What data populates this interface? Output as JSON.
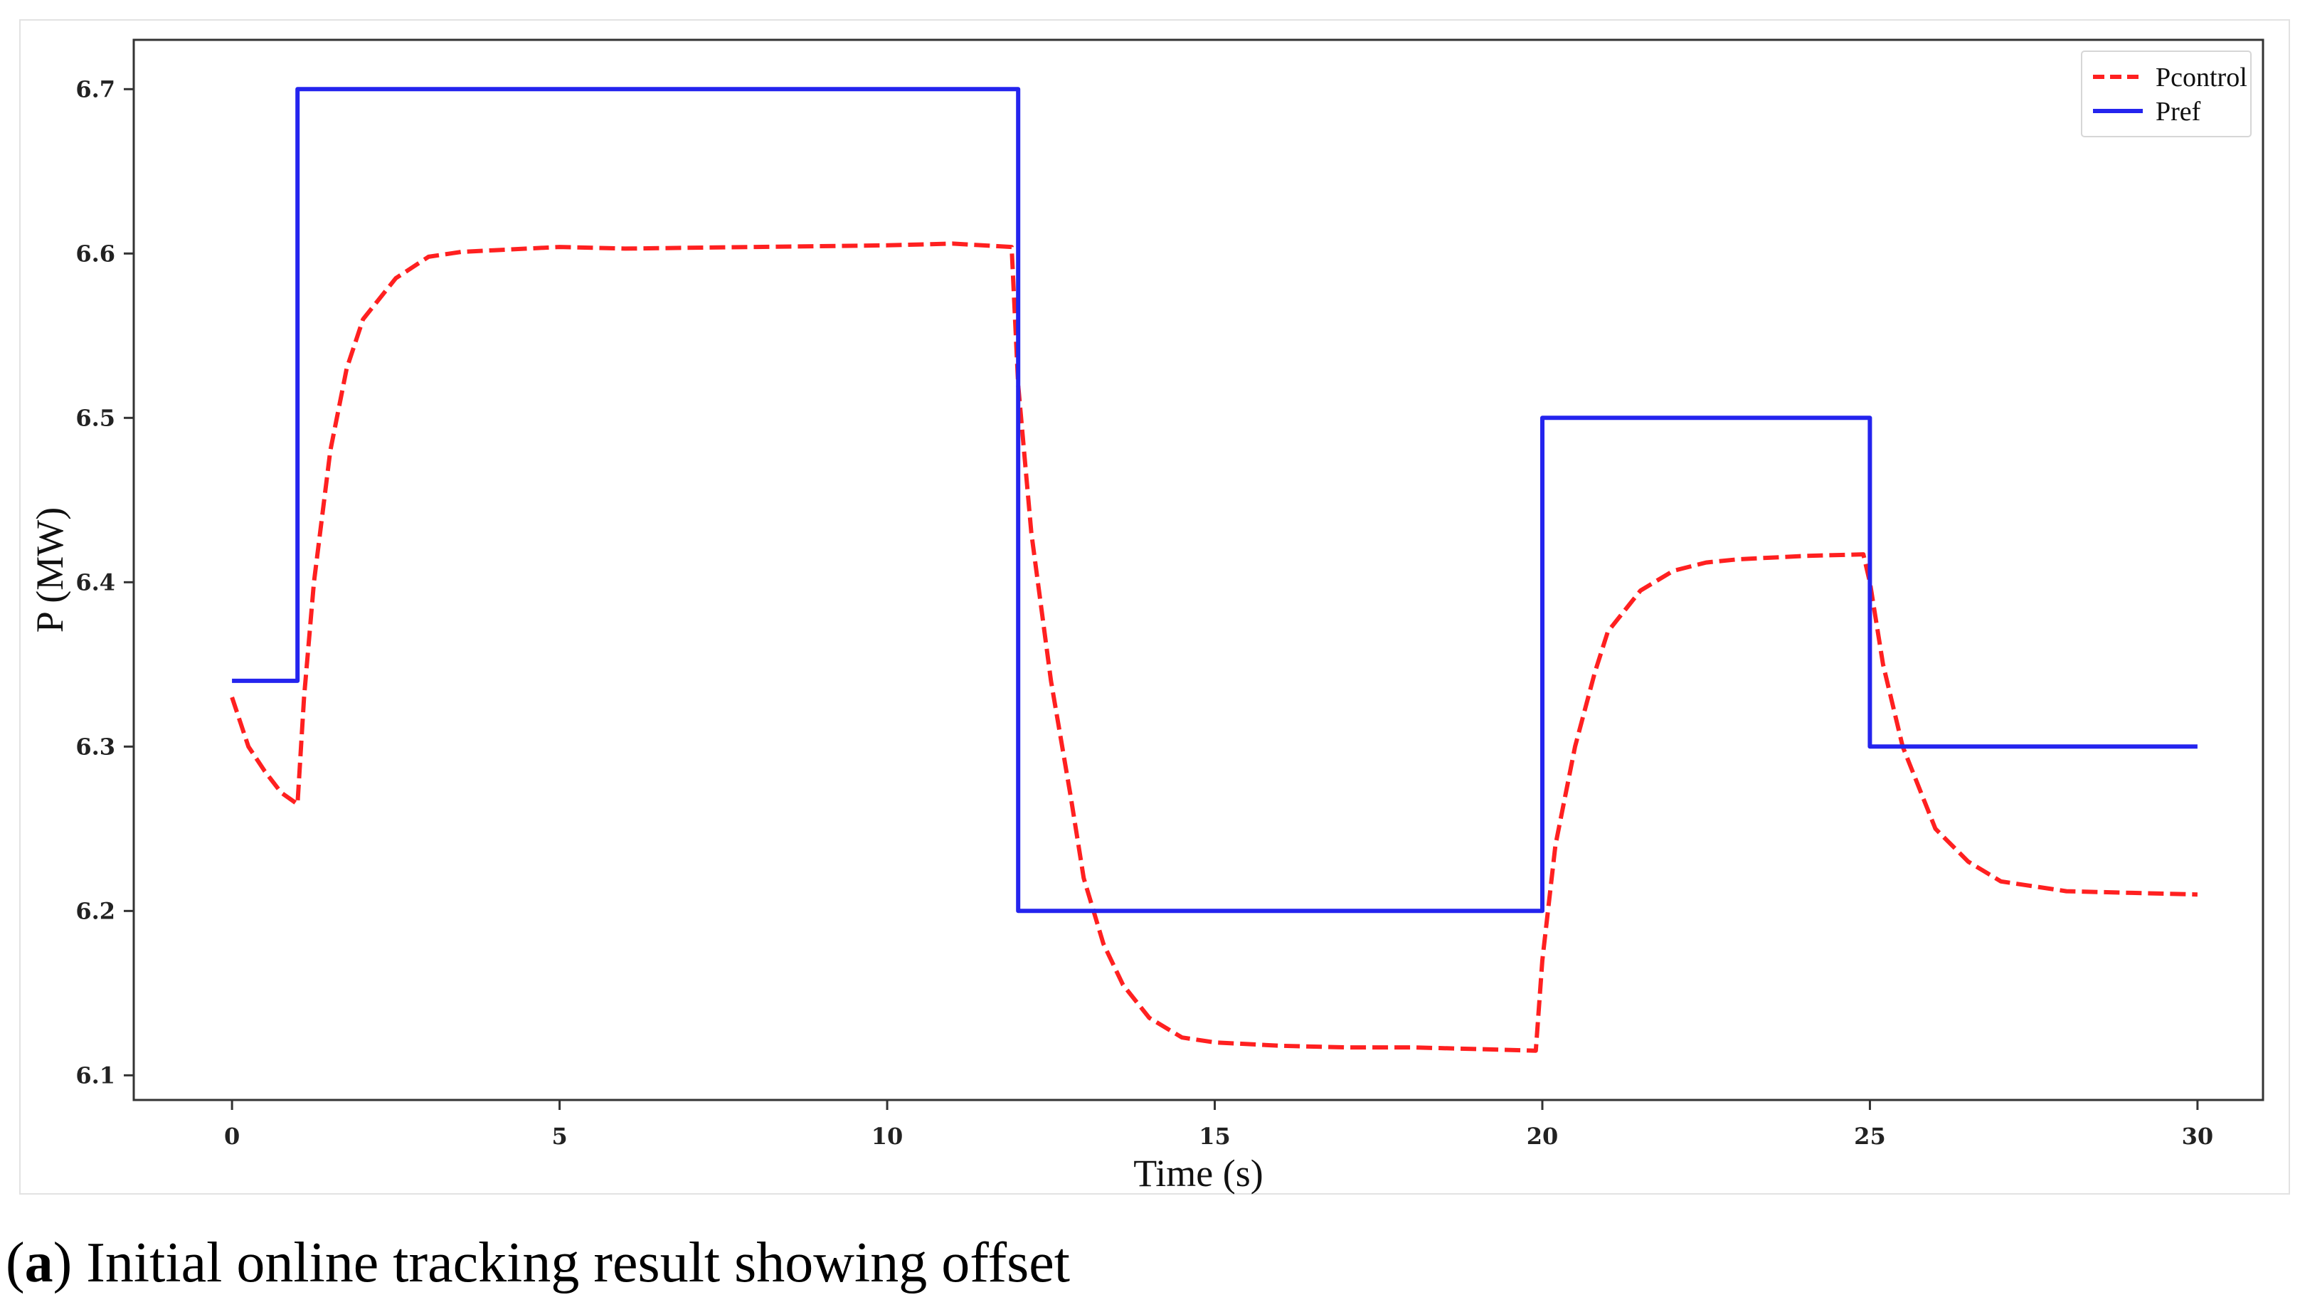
{
  "chart_data": {
    "type": "line",
    "title": "",
    "xlabel": "Time (s)",
    "ylabel": "P (MW)",
    "xlim": [
      -1.5,
      31
    ],
    "ylim": [
      6.085,
      6.73
    ],
    "xticks": [
      0,
      5,
      10,
      15,
      20,
      25,
      30
    ],
    "xtick_labels": [
      "0",
      "5",
      "10",
      "15",
      "20",
      "25",
      "30"
    ],
    "yticks": [
      6.1,
      6.2,
      6.3,
      6.4,
      6.5,
      6.6,
      6.7
    ],
    "ytick_labels": [
      "6.1",
      "6.2",
      "6.3",
      "6.4",
      "6.5",
      "6.6",
      "6.7"
    ],
    "legend_position": "top-right",
    "series": [
      {
        "name": "Pcontrol",
        "style": "dashed",
        "color": "#ff2020",
        "x": [
          0,
          0.25,
          0.5,
          0.75,
          1.0,
          1.1,
          1.25,
          1.5,
          1.75,
          2.0,
          2.5,
          3.0,
          3.5,
          4,
          5,
          6,
          8,
          10,
          11,
          11.9,
          12.0,
          12.2,
          12.5,
          12.8,
          13.0,
          13.3,
          13.6,
          14.0,
          14.5,
          15,
          16,
          17,
          18,
          19,
          19.9,
          20.0,
          20.2,
          20.5,
          20.8,
          21.0,
          21.5,
          22.0,
          22.5,
          23,
          24,
          24.9,
          25.0,
          25.2,
          25.5,
          25.8,
          26.0,
          26.5,
          27,
          28,
          29,
          30
        ],
        "y": [
          6.33,
          6.3,
          6.285,
          6.272,
          6.265,
          6.33,
          6.4,
          6.48,
          6.53,
          6.56,
          6.585,
          6.598,
          6.601,
          6.602,
          6.604,
          6.603,
          6.604,
          6.605,
          6.606,
          6.604,
          6.52,
          6.43,
          6.34,
          6.27,
          6.22,
          6.18,
          6.155,
          6.135,
          6.123,
          6.12,
          6.118,
          6.117,
          6.117,
          6.116,
          6.115,
          6.17,
          6.24,
          6.3,
          6.345,
          6.37,
          6.395,
          6.407,
          6.412,
          6.414,
          6.416,
          6.417,
          6.4,
          6.35,
          6.3,
          6.27,
          6.25,
          6.23,
          6.218,
          6.212,
          6.211,
          6.21
        ]
      },
      {
        "name": "Pref",
        "style": "solid",
        "color": "#2424ee",
        "x": [
          0,
          1,
          1,
          12,
          12,
          20,
          20,
          25,
          25,
          30
        ],
        "y": [
          6.34,
          6.34,
          6.7,
          6.7,
          6.2,
          6.2,
          6.5,
          6.5,
          6.3,
          6.3
        ]
      }
    ]
  },
  "caption": {
    "label": "a",
    "text": "Initial online tracking result showing offset"
  }
}
